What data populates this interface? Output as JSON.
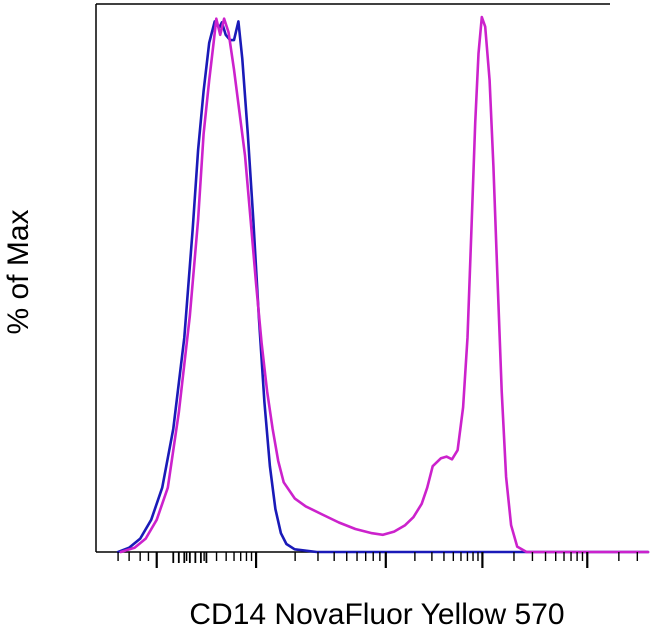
{
  "chart_data": {
    "type": "line",
    "title": "",
    "xlabel": "CD14 NovaFluor Yellow 570",
    "ylabel": "% of Max",
    "x_scale": "biexponential",
    "xlim": [
      0,
      100
    ],
    "ylim": [
      0,
      100
    ],
    "tick_labels_shown": false,
    "grid": false,
    "legend": "none",
    "x_major_ticks": [
      11,
      29,
      52.5,
      70,
      89
    ],
    "series": [
      {
        "color": "#1a1ab8",
        "points": [
          [
            4,
            0
          ],
          [
            6,
            0.8
          ],
          [
            8,
            2.5
          ],
          [
            10,
            6
          ],
          [
            12,
            12
          ],
          [
            14,
            23
          ],
          [
            16,
            40
          ],
          [
            17.5,
            60
          ],
          [
            18.5,
            75
          ],
          [
            19.5,
            86
          ],
          [
            20.5,
            95
          ],
          [
            21.5,
            99
          ],
          [
            22.3,
            97.8
          ],
          [
            22.8,
            98.8
          ],
          [
            23.5,
            96.5
          ],
          [
            24.3,
            95.5
          ],
          [
            25,
            95.5
          ],
          [
            25.8,
            99
          ],
          [
            26.5,
            92
          ],
          [
            27.5,
            78
          ],
          [
            28.5,
            62
          ],
          [
            29.5,
            44
          ],
          [
            30.5,
            28
          ],
          [
            31.5,
            16
          ],
          [
            32.5,
            8
          ],
          [
            33.5,
            3.5
          ],
          [
            34.5,
            1.5
          ],
          [
            36,
            0.5
          ],
          [
            40,
            0
          ],
          [
            100,
            0
          ]
        ]
      },
      {
        "color": "#cc22cc",
        "points": [
          [
            4.5,
            0
          ],
          [
            7,
            0.8
          ],
          [
            9,
            2.5
          ],
          [
            11,
            6
          ],
          [
            13,
            12
          ],
          [
            15,
            26
          ],
          [
            17,
            44
          ],
          [
            18.5,
            62
          ],
          [
            19.5,
            78
          ],
          [
            20.5,
            88
          ],
          [
            21.3,
            95
          ],
          [
            21.8,
            99.5
          ],
          [
            22.5,
            96.5
          ],
          [
            23.2,
            99.5
          ],
          [
            24,
            97
          ],
          [
            25,
            90
          ],
          [
            26,
            82
          ],
          [
            27,
            74
          ],
          [
            28,
            62
          ],
          [
            29,
            50
          ],
          [
            30,
            39
          ],
          [
            31,
            30
          ],
          [
            32,
            23
          ],
          [
            33,
            17
          ],
          [
            34,
            13
          ],
          [
            36,
            10
          ],
          [
            38,
            8.5
          ],
          [
            41,
            7
          ],
          [
            44,
            5.5
          ],
          [
            47,
            4.3
          ],
          [
            50,
            3.5
          ],
          [
            52,
            3.2
          ],
          [
            54,
            3.8
          ],
          [
            56,
            5
          ],
          [
            57.5,
            6.5
          ],
          [
            59,
            9
          ],
          [
            60,
            12
          ],
          [
            61,
            16
          ],
          [
            62.5,
            17.5
          ],
          [
            63.5,
            17.8
          ],
          [
            64.5,
            17.3
          ],
          [
            65.5,
            19
          ],
          [
            66.5,
            27
          ],
          [
            67.3,
            40
          ],
          [
            68,
            60
          ],
          [
            68.7,
            80
          ],
          [
            69.3,
            93
          ],
          [
            69.9,
            99.8
          ],
          [
            70.5,
            98
          ],
          [
            71.3,
            88
          ],
          [
            72,
            72
          ],
          [
            72.7,
            52
          ],
          [
            73.5,
            30
          ],
          [
            74.3,
            14
          ],
          [
            75.2,
            5
          ],
          [
            76.3,
            1
          ],
          [
            78,
            0
          ],
          [
            100,
            0
          ]
        ]
      }
    ]
  }
}
